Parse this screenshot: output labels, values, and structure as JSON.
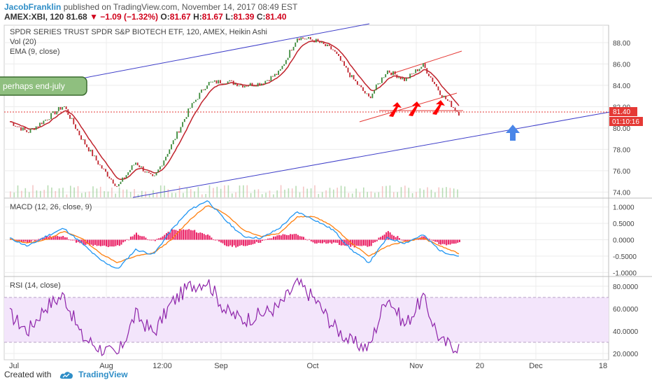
{
  "header": {
    "author": "JacobFranklin",
    "published": "published on TradingView.com, November 14, 2017 08:49 EST",
    "symbol": "AMEX:XBI, 120",
    "price": "81.68",
    "change": "▼ −1.09 (−1.32%)",
    "o_label": "O:",
    "o_val": "81.67",
    "h_label": "H:",
    "h_val": "81.67",
    "l_label": "L:",
    "l_val": "81.39",
    "c_label": "C:",
    "c_val": "81.40"
  },
  "panes": {
    "main_title": "SPDR SERIES TRUST SPDR S&P BIOTECH ETF, 120, AMEX, Heikin Ashi",
    "vol_title": "Vol (20)",
    "ema_title": "EMA (9, close)",
    "macd_title": "MACD (12, 26, close, 9)",
    "rsi_title": "RSI (14, close)"
  },
  "annotation": {
    "text": "perhaps end-july"
  },
  "price_badges": {
    "last": "81.40",
    "timer": "01:10:16"
  },
  "footer": {
    "created_with": "Created with",
    "brand": "TradingView"
  },
  "colors": {
    "price": "#c0232c",
    "candle_up": "#3d8a3b",
    "channel": "#3e3ec9",
    "macd": "#2196f3",
    "signal": "#ff7f0e",
    "hist": "#e91e63",
    "rsi": "#8e24aa",
    "rsi_band": "#f3e5fb",
    "arrow_up": "#4a86e8",
    "annotation_bg": "#8fbf7f"
  },
  "chart_data": [
    {
      "type": "line",
      "title": "SPDR SERIES TRUST SPDR S&P BIOTECH ETF, 120, AMEX, Heikin Ashi",
      "x_ticks": [
        "Jul",
        "Aug",
        "12:00",
        "Sep",
        "Oct",
        "Nov",
        "20",
        "Dec",
        "18"
      ],
      "y_ticks": [
        "88.00",
        "86.00",
        "84.00",
        "82.00",
        "80.00",
        "78.00",
        "76.00",
        "74.00"
      ],
      "ylim": [
        73.5,
        89.5
      ],
      "x": [
        "Jul 1",
        "Jul 10",
        "Jul 18",
        "Jul 25",
        "Jul 31",
        "Aug 8",
        "Aug 11",
        "Aug 16",
        "Aug 22",
        "Aug 28",
        "Sep 1",
        "Sep 8",
        "Sep 15",
        "Sep 22",
        "Sep 28",
        "Oct 2",
        "Oct 6",
        "Oct 12",
        "Oct 18",
        "Oct 24",
        "Oct 27",
        "Oct 31",
        "Nov 3",
        "Nov 7",
        "Nov 10",
        "Nov 14"
      ],
      "series": [
        {
          "values": [
            80.6,
            79.6,
            80.8,
            82.1,
            79.0,
            76.5,
            74.5,
            76.8,
            75.2,
            78.4,
            81.8,
            84.2,
            84.4,
            84.0,
            84.2,
            85.2,
            88.5,
            88.2,
            87.3,
            84.8,
            82.8,
            85.4,
            84.5,
            85.9,
            83.2,
            81.4
          ]
        }
      ],
      "annotations": [
        "perhaps end-july"
      ],
      "last_price": "81.40",
      "countdown": "01:10:16"
    },
    {
      "type": "line",
      "title": "MACD (12, 26, close, 9)",
      "y_ticks": [
        "1.0000",
        "0.5000",
        "0.0000",
        "-0.5000",
        "-1.0000"
      ],
      "ylim": [
        -1.1,
        1.25
      ],
      "x": [
        "Jul 1",
        "Jul 10",
        "Jul 18",
        "Jul 25",
        "Jul 31",
        "Aug 8",
        "Aug 11",
        "Aug 16",
        "Aug 22",
        "Aug 28",
        "Sep 1",
        "Sep 8",
        "Sep 15",
        "Sep 22",
        "Sep 28",
        "Oct 2",
        "Oct 6",
        "Oct 12",
        "Oct 18",
        "Oct 24",
        "Oct 27",
        "Oct 31",
        "Nov 3",
        "Nov 7",
        "Nov 10",
        "Nov 14"
      ],
      "series": [
        {
          "values": [
            0.05,
            -0.2,
            0.1,
            0.35,
            -0.1,
            -0.6,
            -0.9,
            -0.3,
            -0.45,
            0.3,
            0.9,
            1.2,
            0.6,
            0.1,
            0.05,
            0.35,
            0.85,
            0.6,
            0.3,
            -0.3,
            -0.7,
            0.05,
            -0.1,
            0.15,
            -0.35,
            -0.5
          ]
        },
        {
          "values": [
            0.02,
            -0.1,
            0.0,
            0.25,
            0.05,
            -0.4,
            -0.7,
            -0.5,
            -0.4,
            0.0,
            0.6,
            1.05,
            0.8,
            0.3,
            0.1,
            0.2,
            0.7,
            0.7,
            0.4,
            -0.1,
            -0.5,
            -0.2,
            -0.05,
            0.05,
            -0.2,
            -0.42
          ]
        }
      ]
    },
    {
      "type": "line",
      "title": "RSI (14, close)",
      "y_ticks": [
        "80.0000",
        "60.0000",
        "40.0000",
        "20.0000"
      ],
      "ylim": [
        15,
        88
      ],
      "bands": [
        30,
        70
      ],
      "x": [
        "Jul 1",
        "Jul 10",
        "Jul 18",
        "Jul 25",
        "Jul 31",
        "Aug 8",
        "Aug 11",
        "Aug 16",
        "Aug 22",
        "Aug 28",
        "Sep 1",
        "Sep 8",
        "Sep 15",
        "Sep 22",
        "Sep 28",
        "Oct 2",
        "Oct 6",
        "Oct 12",
        "Oct 18",
        "Oct 24",
        "Oct 27",
        "Oct 31",
        "Nov 3",
        "Nov 7",
        "Nov 10",
        "Nov 14"
      ],
      "series": [
        {
          "values": [
            55,
            40,
            62,
            72,
            35,
            25,
            18,
            55,
            38,
            65,
            80,
            85,
            58,
            50,
            55,
            62,
            83,
            68,
            45,
            30,
            25,
            72,
            45,
            70,
            30,
            26
          ]
        }
      ]
    }
  ]
}
